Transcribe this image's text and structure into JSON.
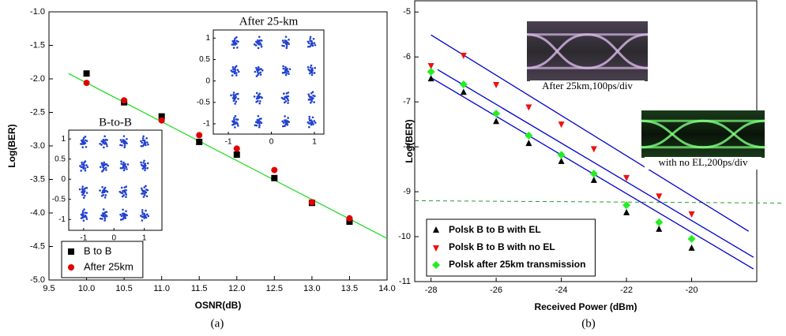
{
  "chart_data": [
    {
      "type": "scatter",
      "xlabel": "OSNR(dB)",
      "ylabel": "Log(BER)",
      "caption": "(a)",
      "xlim": [
        9.5,
        14
      ],
      "ylim": [
        -5,
        -1
      ],
      "xticks": [
        9.5,
        {
          "value": 10,
          "label": "10.0"
        },
        10.5,
        {
          "value": 11,
          "label": "11.0"
        },
        11.5,
        {
          "value": 12,
          "label": "12.0"
        },
        12.5,
        {
          "value": 13,
          "label": "13.0"
        },
        13.5,
        {
          "value": 14,
          "label": "14.0"
        }
      ],
      "yticks": [
        {
          "value": -1,
          "label": "-1.0"
        },
        -1.5,
        {
          "value": -2,
          "label": "-2.0"
        },
        -2.5,
        {
          "value": -3,
          "label": "-3.0"
        },
        -3.5,
        {
          "value": -4,
          "label": "-4.0"
        },
        -4.5,
        {
          "value": -5,
          "label": "-5.0"
        }
      ],
      "x": [
        10,
        10.5,
        11,
        11.5,
        12,
        12.5,
        13,
        13.5
      ],
      "series": [
        {
          "name": "B to B",
          "color": "#000000",
          "marker": "square",
          "values": [
            -1.92,
            -2.35,
            -2.56,
            -2.94,
            -3.13,
            -3.48,
            -3.85,
            -4.13
          ]
        },
        {
          "name": "After 25km",
          "color": "#e00000",
          "marker": "circle",
          "values": [
            -2.06,
            -2.32,
            -2.62,
            -2.84,
            -3.04,
            -3.36,
            -3.84,
            -4.08
          ]
        }
      ],
      "fit_lines": [
        {
          "x": [
            9.76,
            14
          ],
          "values": [
            -1.92,
            -4.38
          ],
          "color": "#22dd22"
        }
      ],
      "legend": "lower left",
      "legend_bold": false,
      "insets": [
        {
          "title": "B-to-B",
          "xlim": [
            -1.49,
            1.58
          ],
          "ylim": [
            -1.27,
            1.22
          ],
          "xticks": [
            -1,
            0,
            1
          ],
          "yticks": [
            1,
            0.5,
            0,
            -0.5,
            -1
          ],
          "color": "#2040d0",
          "points": {
            "x": [
              -1,
              -0.33,
              0.33,
              1,
              -1,
              -0.33,
              0.33,
              1,
              -1,
              -0.33,
              0.33,
              1,
              -1,
              -0.33,
              0.33,
              1
            ],
            "y": [
              0.92,
              0.92,
              0.92,
              0.92,
              0.33,
              0.33,
              0.33,
              0.33,
              -0.31,
              -0.31,
              -0.31,
              -0.31,
              -0.9,
              -0.9,
              -0.9,
              -0.9
            ]
          }
        },
        {
          "title": "After 25-km",
          "xlim": [
            -1.35,
            1.22
          ],
          "ylim": [
            -1.24,
            1.19
          ],
          "xticks": [
            -1,
            0,
            1
          ],
          "yticks": [
            1,
            0.5,
            0,
            -0.5,
            -1
          ],
          "color": "#2040d0",
          "points": {
            "x": [
              -0.85,
              -0.3,
              0.34,
              0.93,
              -0.85,
              -0.3,
              0.34,
              0.93,
              -0.85,
              -0.3,
              0.34,
              0.93,
              -0.85,
              -0.3,
              0.34,
              0.93
            ],
            "y": [
              0.89,
              0.89,
              0.89,
              0.89,
              0.24,
              0.24,
              0.24,
              0.24,
              -0.39,
              -0.39,
              -0.39,
              -0.39,
              -0.96,
              -0.96,
              -0.96,
              -0.96
            ]
          }
        }
      ]
    },
    {
      "type": "scatter",
      "xlabel": "Received Power (dBm)",
      "ylabel": "Log(BER)",
      "caption": "(b)",
      "xlim": [
        -28.5,
        -18
      ],
      "ylim": [
        -11,
        -4.75
      ],
      "xticks": [
        -28,
        -26,
        -24,
        -22,
        -20
      ],
      "yticks": [
        -5,
        -6,
        -7,
        -8,
        -9,
        -10,
        -11
      ],
      "x": [
        -28,
        -27,
        -26,
        -25,
        -24,
        -23,
        -22,
        -21,
        -20
      ],
      "series": [
        {
          "name": "Polsk B to B with EL",
          "color": "#000000",
          "marker": "triangle-up",
          "values": [
            -6.49,
            -6.79,
            -7.44,
            -7.93,
            -8.33,
            -8.75,
            -9.47,
            -9.84,
            -10.26
          ]
        },
        {
          "name": "Polsk B to B with no EL",
          "color": "#ee1111",
          "marker": "triangle-down",
          "values": [
            -6.19,
            -5.96,
            -6.61,
            -7.11,
            -7.49,
            -8.04,
            -8.68,
            -9.09,
            -9.49
          ]
        },
        {
          "name": "Polsk after 25km transmission",
          "color": "#22ee22",
          "marker": "diamond",
          "values": [
            -6.33,
            -6.61,
            -7.26,
            -7.75,
            -8.18,
            -8.6,
            -9.3,
            -9.68,
            -10.05
          ]
        }
      ],
      "fit_lines": [
        {
          "x": [
            -28,
            -18.25
          ],
          "values": [
            -5.51,
            -9.88
          ],
          "color": "#0000cc"
        },
        {
          "x": [
            -27.8,
            -18.1
          ],
          "values": [
            -6.28,
            -10.46
          ],
          "color": "#0000cc"
        },
        {
          "x": [
            -28,
            -18.1
          ],
          "values": [
            -6.46,
            -10.72
          ],
          "color": "#0000cc"
        }
      ],
      "reference_line": {
        "value": -9.2,
        "color": "#2a9a2a",
        "dashed": true
      },
      "legend": "lower left",
      "legend_bold": true,
      "image_insets": [
        {
          "caption": "After 25km,100ps/div"
        },
        {
          "caption": "with no EL,200ps/div"
        }
      ]
    }
  ]
}
